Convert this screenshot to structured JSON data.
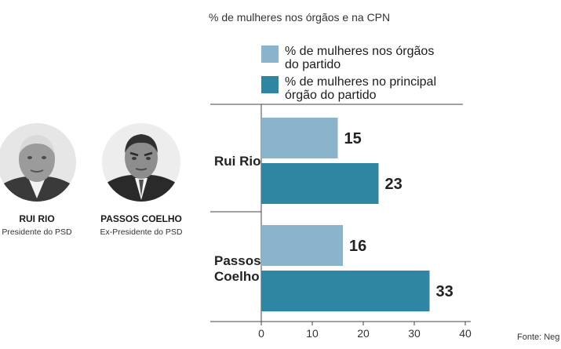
{
  "chart_data": {
    "type": "bar",
    "orientation": "horizontal",
    "title": "% de mulheres nos órgãos e na CPN",
    "categories": [
      "Rui Rio",
      "Passos Coelho"
    ],
    "category_lines": [
      [
        "Rui Rio"
      ],
      [
        "Passos",
        "Coelho"
      ]
    ],
    "series": [
      {
        "name": "% de mulheres nos órgãos do partido",
        "name_lines": [
          "% de mulheres nos órgãos",
          "do partido"
        ],
        "color": "#8ab4cc",
        "values": [
          15,
          16
        ]
      },
      {
        "name": "% de mulheres no principal órgão do partido",
        "name_lines": [
          "% de mulheres no principal",
          "órgão do partido"
        ],
        "color": "#2e86a3",
        "values": [
          23,
          33
        ]
      }
    ],
    "xlim": [
      0,
      40
    ],
    "xticks": [
      0,
      10,
      20,
      30,
      40
    ],
    "xlabel": "",
    "ylabel": "",
    "grid": false,
    "data_labels": true,
    "legend_position": "top"
  },
  "people": [
    {
      "name": "RUI RIO",
      "role": "Presidente do PSD"
    },
    {
      "name": "PASSOS COELHO",
      "role": "Ex-Presidente do PSD"
    }
  ],
  "source": "Fonte: Neg",
  "colors": {
    "axis": "#444444",
    "text": "#222222"
  }
}
